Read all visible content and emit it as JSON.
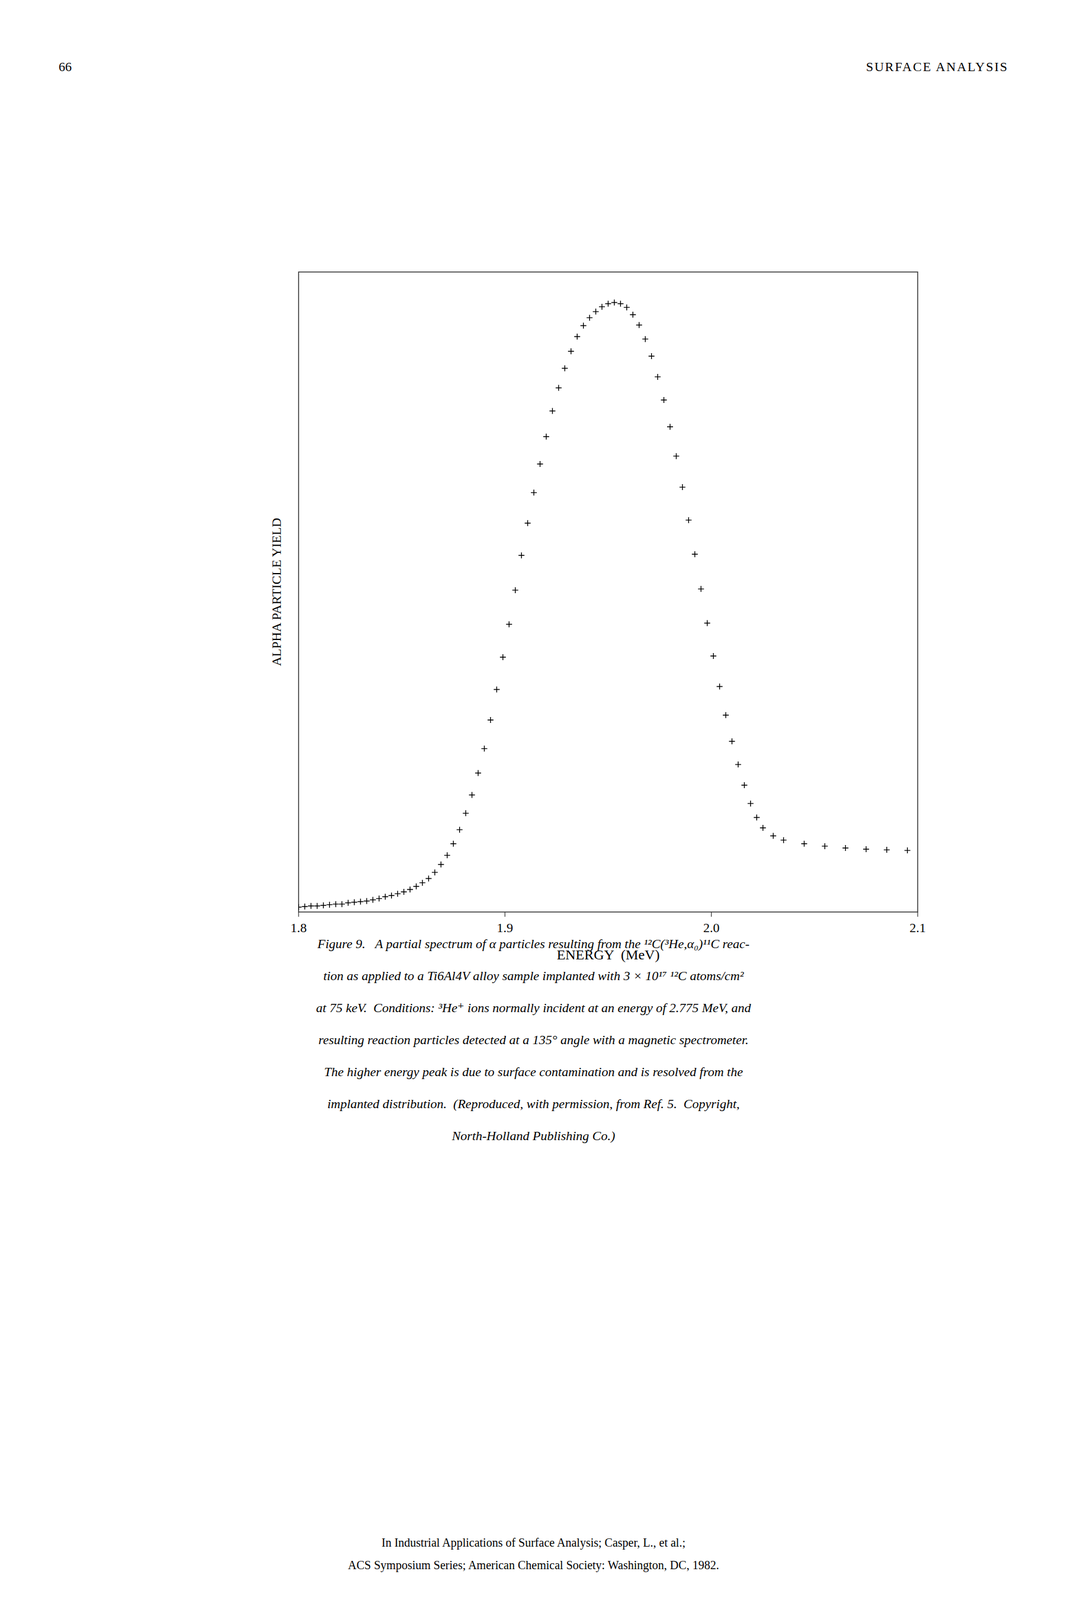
{
  "chart_data": {
    "type": "scatter",
    "annotations": [
      "66",
      "SURFACE ANALYSIS"
    ],
    "xlabel": "ENERGY  (MeV)",
    "ylabel": "ALPHA PARTICLE YIELD",
    "xlim": [
      1.8,
      2.1
    ],
    "ylim": [
      0,
      1.05
    ],
    "xticks": [
      1.8,
      1.9,
      {
        "value": 2.0,
        "label": "2.0"
      },
      2.1
    ],
    "yticks": [],
    "tick_labels": "x",
    "grid": false,
    "marker": "plus",
    "color": "#000000",
    "x": [
      1.8,
      1.803,
      1.806,
      1.809,
      1.812,
      1.815,
      1.818,
      1.821,
      1.824,
      1.827,
      1.83,
      1.833,
      1.836,
      1.839,
      1.842,
      1.845,
      1.848,
      1.851,
      1.854,
      1.857,
      1.86,
      1.863,
      1.866,
      1.869,
      1.872,
      1.875,
      1.878,
      1.881,
      1.884,
      1.887,
      1.89,
      1.893,
      1.896,
      1.899,
      1.902,
      1.905,
      1.908,
      1.911,
      1.914,
      1.917,
      1.92,
      1.923,
      1.926,
      1.929,
      1.932,
      1.935,
      1.938,
      1.941,
      1.944,
      1.947,
      1.95,
      1.953,
      1.956,
      1.959,
      1.962,
      1.965,
      1.968,
      1.971,
      1.974,
      1.977,
      1.98,
      1.983,
      1.986,
      1.989,
      1.992,
      1.995,
      1.998,
      2.001,
      2.004,
      2.007,
      2.01,
      2.013,
      2.016,
      2.019,
      2.022,
      2.025,
      2.03,
      2.035,
      2.045,
      2.055,
      2.065,
      2.075,
      2.085,
      2.095
    ],
    "values": [
      0.008,
      0.009,
      0.01,
      0.01,
      0.011,
      0.012,
      0.013,
      0.013,
      0.015,
      0.016,
      0.017,
      0.018,
      0.02,
      0.022,
      0.025,
      0.027,
      0.03,
      0.033,
      0.037,
      0.042,
      0.048,
      0.055,
      0.065,
      0.078,
      0.093,
      0.112,
      0.135,
      0.162,
      0.192,
      0.228,
      0.268,
      0.315,
      0.365,
      0.418,
      0.472,
      0.528,
      0.585,
      0.638,
      0.688,
      0.735,
      0.78,
      0.822,
      0.86,
      0.892,
      0.92,
      0.944,
      0.962,
      0.975,
      0.985,
      0.993,
      0.998,
      1.0,
      0.998,
      0.992,
      0.98,
      0.963,
      0.94,
      0.912,
      0.878,
      0.84,
      0.796,
      0.748,
      0.697,
      0.643,
      0.587,
      0.53,
      0.474,
      0.42,
      0.37,
      0.323,
      0.28,
      0.242,
      0.208,
      0.178,
      0.155,
      0.138,
      0.125,
      0.118,
      0.112,
      0.108,
      0.105,
      0.103,
      0.102,
      0.101
    ],
    "caption": [
      "Figure 9.   A partial spectrum of α particles resulting from the ¹²C(³He,α₀)¹¹C reac-",
      "tion as applied to a Ti6Al4V alloy sample implanted with 3 × 10¹⁷ ¹²C atoms/cm²",
      "at 75 keV.  Conditions: ³He⁺ ions normally incident at an energy of 2.775 MeV, and",
      "resulting reaction particles detected at a 135° angle with a magnetic spectrometer.",
      "The higher energy peak is due to surface contamination and is resolved from the",
      "implanted distribution.  (Reproduced, with permission, from Ref. 5.  Copyright,",
      "North-Holland Publishing Co.)"
    ],
    "footer": [
      "In Industrial Applications of Surface Analysis; Casper, L., et al.;",
      "ACS Symposium Series; American Chemical Society: Washington, DC, 1982."
    ]
  }
}
